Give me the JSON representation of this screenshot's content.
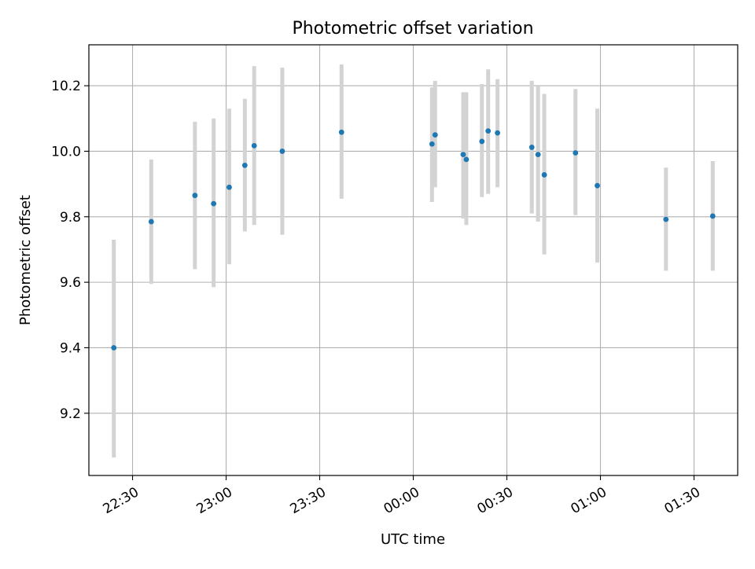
{
  "chart_data": {
    "type": "scatter",
    "title": "Photometric offset variation",
    "xlabel": "UTC time",
    "ylabel": "Photometric offset",
    "x_axis": {
      "kind": "time",
      "range": [
        "22:16",
        "01:44"
      ],
      "ticks": [
        {
          "t": "22:30",
          "label": "22:30"
        },
        {
          "t": "23:00",
          "label": "23:00"
        },
        {
          "t": "23:30",
          "label": "23:30"
        },
        {
          "t": "00:00",
          "label": "00:00"
        },
        {
          "t": "00:30",
          "label": "00:30"
        },
        {
          "t": "01:00",
          "label": "01:00"
        },
        {
          "t": "01:30",
          "label": "01:30"
        }
      ]
    },
    "y_axis": {
      "range": [
        9.01,
        10.325
      ],
      "ticks": [
        {
          "v": 9.2,
          "label": "9.2"
        },
        {
          "v": 9.4,
          "label": "9.4"
        },
        {
          "v": 9.6,
          "label": "9.6"
        },
        {
          "v": 9.8,
          "label": "9.8"
        },
        {
          "v": 10.0,
          "label": "10.0"
        },
        {
          "v": 10.2,
          "label": "10.2"
        }
      ]
    },
    "grid": true,
    "colors": {
      "point": "#1f77b4",
      "errorbar": "#d3d3d3",
      "grid": "#b0b0b0",
      "axes": "#000000"
    },
    "points": [
      {
        "t": "22:24",
        "y": 9.4,
        "low": 9.065,
        "high": 9.73
      },
      {
        "t": "22:36",
        "y": 9.785,
        "low": 9.595,
        "high": 9.975
      },
      {
        "t": "22:50",
        "y": 9.865,
        "low": 9.64,
        "high": 10.09
      },
      {
        "t": "22:56",
        "y": 9.84,
        "low": 9.585,
        "high": 10.1
      },
      {
        "t": "23:01",
        "y": 9.89,
        "low": 9.655,
        "high": 10.13
      },
      {
        "t": "23:06",
        "y": 9.957,
        "low": 9.755,
        "high": 10.16
      },
      {
        "t": "23:09",
        "y": 10.017,
        "low": 9.775,
        "high": 10.26
      },
      {
        "t": "23:18",
        "y": 10.0,
        "low": 9.745,
        "high": 10.255
      },
      {
        "t": "23:37",
        "y": 10.058,
        "low": 9.855,
        "high": 10.265
      },
      {
        "t": "00:06",
        "y": 10.022,
        "low": 9.845,
        "high": 10.195
      },
      {
        "t": "00:07",
        "y": 10.05,
        "low": 9.89,
        "high": 10.215
      },
      {
        "t": "00:16",
        "y": 9.99,
        "low": 9.795,
        "high": 10.18
      },
      {
        "t": "00:17",
        "y": 9.975,
        "low": 9.775,
        "high": 10.18
      },
      {
        "t": "00:22",
        "y": 10.03,
        "low": 9.86,
        "high": 10.205
      },
      {
        "t": "00:24",
        "y": 10.062,
        "low": 9.87,
        "high": 10.25
      },
      {
        "t": "00:27",
        "y": 10.056,
        "low": 9.89,
        "high": 10.22
      },
      {
        "t": "00:38",
        "y": 10.012,
        "low": 9.81,
        "high": 10.215
      },
      {
        "t": "00:40",
        "y": 9.99,
        "low": 9.785,
        "high": 10.2
      },
      {
        "t": "00:42",
        "y": 9.928,
        "low": 9.685,
        "high": 10.175
      },
      {
        "t": "00:52",
        "y": 9.995,
        "low": 9.805,
        "high": 10.19
      },
      {
        "t": "00:59",
        "y": 9.895,
        "low": 9.66,
        "high": 10.13
      },
      {
        "t": "01:21",
        "y": 9.792,
        "low": 9.635,
        "high": 9.95
      },
      {
        "t": "01:36",
        "y": 9.802,
        "low": 9.635,
        "high": 9.97
      }
    ]
  }
}
